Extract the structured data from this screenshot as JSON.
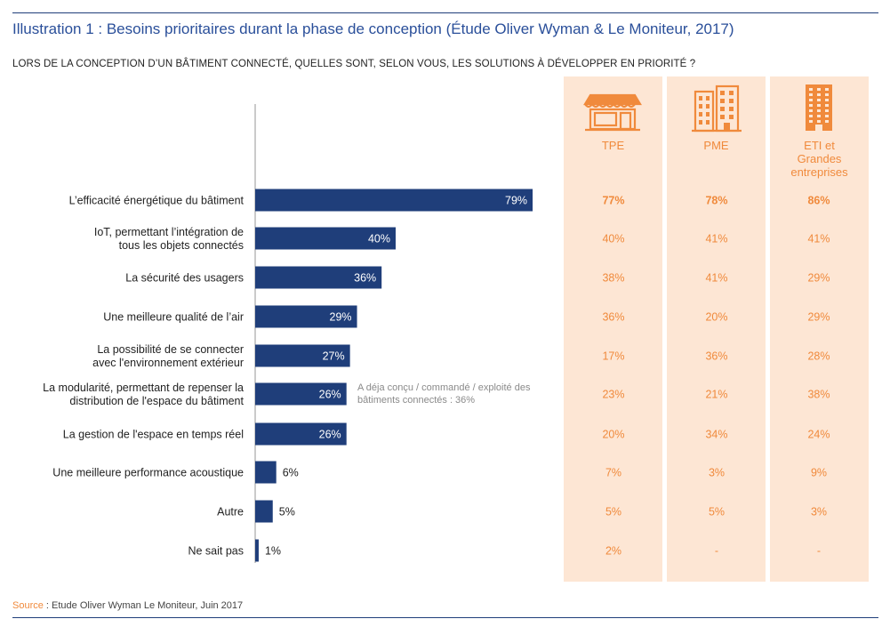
{
  "title": "Illustration 1 : Besoins prioritaires durant la phase de conception (Étude Oliver Wyman & Le Moniteur, 2017)",
  "subtitle": "LORS DE LA CONCEPTION D’UN BÂTIMENT CONNECTÉ, QUELLES SONT, SELON VOUS, LES SOLUTIONS À DÉVELOPPER EN PRIORITÉ ?",
  "note": "A déja conçu / commandé / exploité des bâtiments connectés : 36%",
  "source": {
    "label": "Source",
    "text": " : Etude Oliver Wyman Le Moniteur, Juin 2017"
  },
  "colors": {
    "bar": "#1f3e7a",
    "accent": "#f08a3c",
    "column_bg": "#fde6d4",
    "title": "#2a4f9a"
  },
  "segments": [
    {
      "label": "TPE",
      "icon": "shop-icon"
    },
    {
      "label": "PME",
      "icon": "building-icon"
    },
    {
      "label": "ETI et Grandes entreprises",
      "icon": "tower-icon"
    }
  ],
  "chart_data": {
    "type": "bar",
    "orientation": "horizontal",
    "categories": [
      "L’efficacité énergétique du bâtiment",
      "IoT, permettant l’intégration de tous les objets connectés",
      "La sécurité des usagers",
      "Une meilleure qualité de l’air",
      "La possibilité de se connecter avec l'environnement extérieur",
      "La modularité, permettant de repenser la distribution de l'espace du bâtiment",
      "La gestion de l'espace en temps réel",
      "Une meilleure performance acoustique",
      "Autre",
      "Ne sait pas"
    ],
    "category_lines": [
      [
        "L’efficacité énergétique du bâtiment"
      ],
      [
        "IoT, permettant l’intégration de",
        "tous les objets connectés"
      ],
      [
        "La sécurité des usagers"
      ],
      [
        "Une meilleure qualité de l’air"
      ],
      [
        "La possibilité de se connecter",
        "avec l'environnement extérieur"
      ],
      [
        "La modularité, permettant de repenser la",
        "distribution de l'espace du bâtiment"
      ],
      [
        "La gestion de l'espace en temps réel"
      ],
      [
        "Une meilleure performance acoustique"
      ],
      [
        "Autre"
      ],
      [
        "Ne sait pas"
      ]
    ],
    "values": [
      79,
      40,
      36,
      29,
      27,
      26,
      26,
      6,
      5,
      1
    ],
    "value_labels": [
      "79%",
      "40%",
      "36%",
      "29%",
      "27%",
      "26%",
      "26%",
      "6%",
      "5%",
      "1%"
    ],
    "table": {
      "TPE": [
        "77%",
        "40%",
        "38%",
        "36%",
        "17%",
        "23%",
        "20%",
        "7%",
        "5%",
        "2%"
      ],
      "PME": [
        "78%",
        "41%",
        "41%",
        "20%",
        "36%",
        "21%",
        "34%",
        "3%",
        "5%",
        "-"
      ],
      "ETI et Grandes entreprises": [
        "86%",
        "41%",
        "29%",
        "29%",
        "28%",
        "38%",
        "24%",
        "9%",
        "3%",
        "-"
      ]
    },
    "bold_rows": [
      0
    ],
    "xlim": [
      0,
      100
    ]
  }
}
